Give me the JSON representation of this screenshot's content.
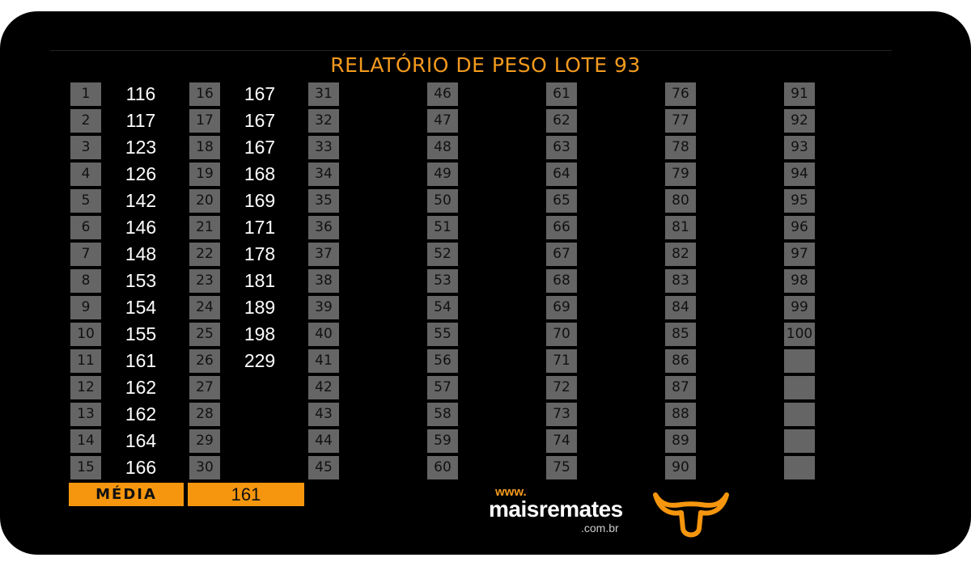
{
  "title": "RELATÓRIO DE PESO LOTE  93",
  "columns": [
    {
      "numbers": [
        "1",
        "2",
        "3",
        "4",
        "5",
        "6",
        "7",
        "8",
        "9",
        "10",
        "11",
        "12",
        "13",
        "14",
        "15"
      ],
      "weights": [
        "116",
        "117",
        "123",
        "126",
        "142",
        "146",
        "148",
        "153",
        "154",
        "155",
        "161",
        "162",
        "162",
        "164",
        "166"
      ]
    },
    {
      "numbers": [
        "16",
        "17",
        "18",
        "19",
        "20",
        "21",
        "22",
        "23",
        "24",
        "25",
        "26",
        "27",
        "28",
        "29",
        "30"
      ],
      "weights": [
        "167",
        "167",
        "167",
        "168",
        "169",
        "171",
        "178",
        "181",
        "189",
        "198",
        "229",
        "",
        "",
        "",
        ""
      ]
    },
    {
      "numbers": [
        "31",
        "32",
        "33",
        "34",
        "35",
        "36",
        "37",
        "38",
        "39",
        "40",
        "41",
        "42",
        "43",
        "44",
        "45"
      ],
      "weights": [
        "",
        "",
        "",
        "",
        "",
        "",
        "",
        "",
        "",
        "",
        "",
        "",
        "",
        "",
        ""
      ]
    },
    {
      "numbers": [
        "46",
        "47",
        "48",
        "49",
        "50",
        "51",
        "52",
        "53",
        "54",
        "55",
        "56",
        "57",
        "58",
        "59",
        "60"
      ],
      "weights": [
        "",
        "",
        "",
        "",
        "",
        "",
        "",
        "",
        "",
        "",
        "",
        "",
        "",
        "",
        ""
      ]
    },
    {
      "numbers": [
        "61",
        "62",
        "63",
        "64",
        "65",
        "66",
        "67",
        "68",
        "69",
        "70",
        "71",
        "72",
        "73",
        "74",
        "75"
      ],
      "weights": [
        "",
        "",
        "",
        "",
        "",
        "",
        "",
        "",
        "",
        "",
        "",
        "",
        "",
        "",
        ""
      ]
    },
    {
      "numbers": [
        "76",
        "77",
        "78",
        "79",
        "80",
        "81",
        "82",
        "83",
        "84",
        "85",
        "86",
        "87",
        "88",
        "89",
        "90"
      ],
      "weights": [
        "",
        "",
        "",
        "",
        "",
        "",
        "",
        "",
        "",
        "",
        "",
        "",
        "",
        "",
        ""
      ]
    },
    {
      "numbers": [
        "91",
        "92",
        "93",
        "94",
        "95",
        "96",
        "97",
        "98",
        "99",
        "100",
        "",
        "",
        "",
        "",
        ""
      ],
      "weights": [
        "",
        "",
        "",
        "",
        "",
        "",
        "",
        "",
        "",
        "",
        "",
        "",
        "",
        "",
        ""
      ]
    }
  ],
  "average": {
    "label": "MÉDIA",
    "value": "161"
  },
  "logo": {
    "www": "www.",
    "name": "maisremates",
    "domain": ".com.br",
    "icon": "bull-head-icon"
  },
  "colors": {
    "accent": "#f5960e",
    "cell": "#656565",
    "background": "#000000"
  }
}
